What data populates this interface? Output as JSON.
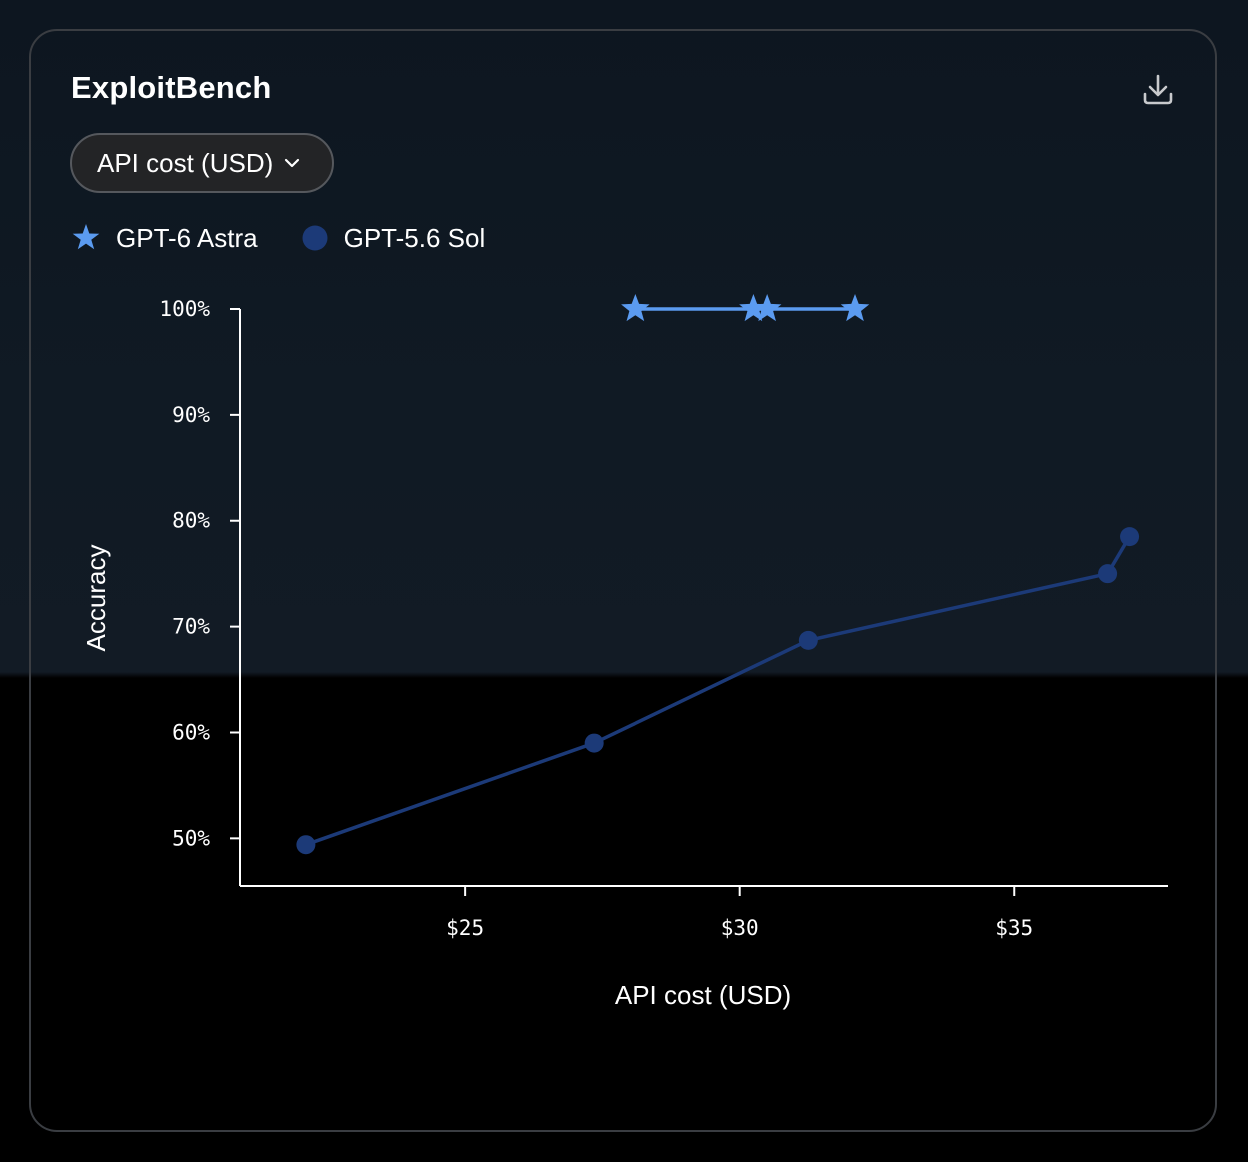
{
  "header": {
    "title": "ExploitBench",
    "download_icon": "download-icon"
  },
  "metric_selector": {
    "selected": "API cost (USD)",
    "chevron_icon": "chevron-down-icon"
  },
  "legend": [
    {
      "name": "GPT-6 Astra",
      "marker": "star",
      "color": "#5b9bf0"
    },
    {
      "name": "GPT-5.6 Sol",
      "marker": "circle",
      "color": "#1c3a78"
    }
  ],
  "chart_data": {
    "type": "line",
    "xlabel": "API cost (USD)",
    "ylabel": "Accuracy",
    "xlim": [
      20.9,
      37.8
    ],
    "ylim": [
      45.5,
      100
    ],
    "x_ticks": [
      25,
      30,
      35
    ],
    "x_tick_labels": [
      "$25",
      "$30",
      "$35"
    ],
    "y_ticks": [
      50,
      60,
      70,
      80,
      90,
      100
    ],
    "y_tick_labels": [
      "50%",
      "60%",
      "70%",
      "80%",
      "90%",
      "100%"
    ],
    "legend_position": "top-left",
    "grid": false,
    "series": [
      {
        "name": "GPT-6 Astra",
        "marker": "star",
        "color": "#5b9bf0",
        "x": [
          28.1,
          30.25,
          30.5,
          32.1
        ],
        "y": [
          100,
          100,
          100,
          100
        ]
      },
      {
        "name": "GPT-5.6 Sol",
        "marker": "circle",
        "color": "#1c3a78",
        "x": [
          22.1,
          27.35,
          31.25,
          36.7,
          37.1
        ],
        "y": [
          49.4,
          59.0,
          68.7,
          75.0,
          78.5
        ]
      }
    ]
  }
}
